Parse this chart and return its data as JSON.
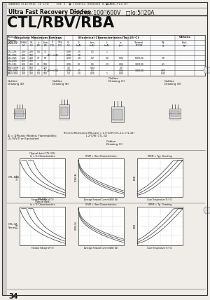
{
  "bg_color": "#f0ede8",
  "page_bg": "#e8e5e0",
  "header1": "SANKEN ELECTRIC CO LTD    35E 3  ■ 7193741 0006439 0 ■SAKE—FL3‐07",
  "header2_bold": "Ultra Fast Recovery Diodes",
  "header2_rest": "  □Vrrm:100～600V   □Io:5～20A",
  "title": "CTL/RBV/RBA",
  "footer_number": "34",
  "graph1_title1": "Io = % Characteristics",
  "graph1_title2": "(Typical data) CTL-32S",
  "graph2_title": "IFSM = Ifsm-Characteristics",
  "graph3_title": "IRRM = Typ. Derating",
  "graph4_title1": "Io = % Characteristics",
  "graph4_title2": "(Typical data)",
  "graph4_title3": "CTL-32S",
  "graph5_title": "IFSM = Ifsm-Characteristics",
  "graph6_title": "IRRM = Tp. Derating",
  "row1_label": "CTL-12S",
  "row2_label": "CTL-32\nSeries",
  "note_text1": "① = ③Plastic Molded, Flammability:",
  "note_text2": "UL-94V-0 or Equivalent",
  "thermal_text": "Thermal Resistance Rθj-case = 1.3°C/W (CTL-12, CTL-32)",
  "thermal_text2": "                             1.2°C/W (CTL-32)",
  "white": "#ffffff",
  "black": "#111111",
  "gray_light": "#dddddd",
  "gray_mid": "#aaaaaa",
  "line_color": "#444444"
}
